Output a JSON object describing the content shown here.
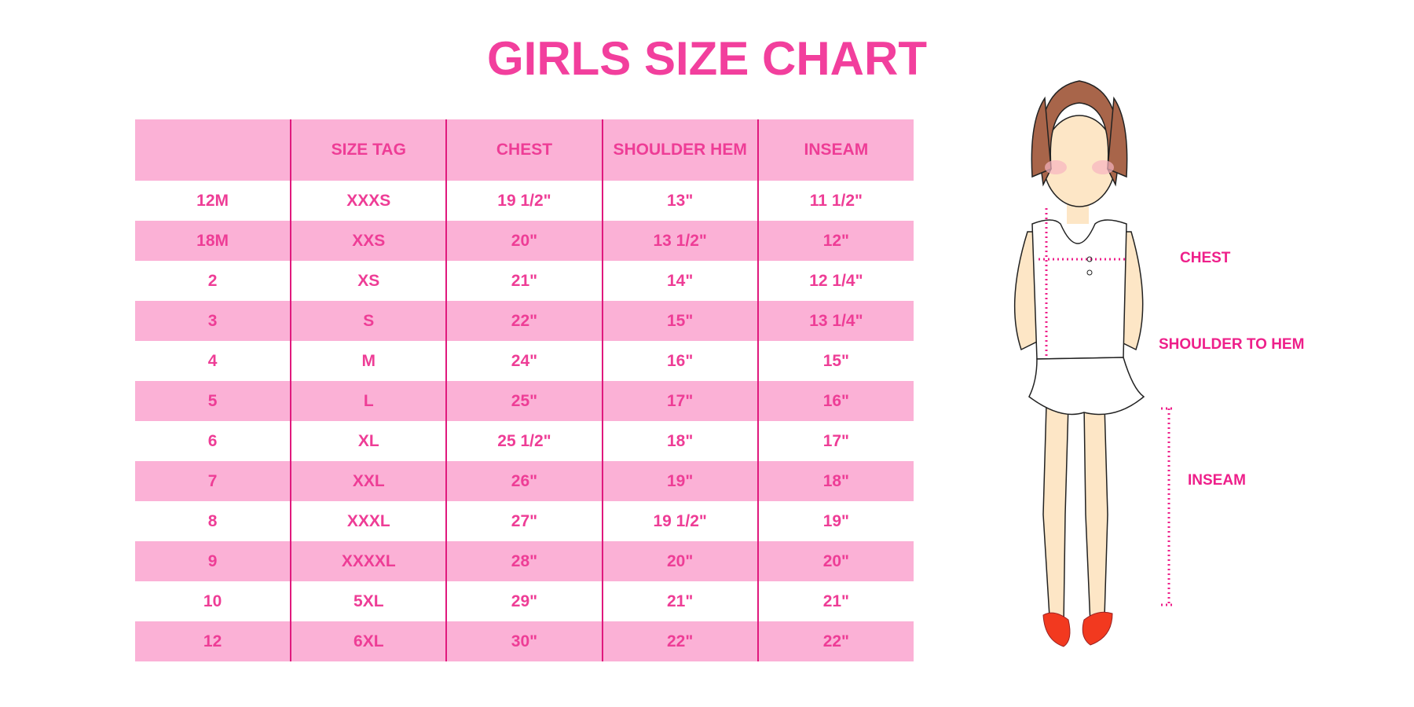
{
  "title": "GIRLS SIZE CHART",
  "table": {
    "headers": [
      "",
      "SIZE TAG",
      "CHEST",
      "SHOULDER HEM",
      "INSEAM"
    ],
    "rows": [
      [
        "12M",
        "XXXS",
        "19 1/2\"",
        "13\"",
        "11 1/2\""
      ],
      [
        "18M",
        "XXS",
        "20\"",
        "13 1/2\"",
        "12\""
      ],
      [
        "2",
        "XS",
        "21\"",
        "14\"",
        "12 1/4\""
      ],
      [
        "3",
        "S",
        "22\"",
        "15\"",
        "13 1/4\""
      ],
      [
        "4",
        "M",
        "24\"",
        "16\"",
        "15\""
      ],
      [
        "5",
        "L",
        "25\"",
        "17\"",
        "16\""
      ],
      [
        "6",
        "XL",
        "25 1/2\"",
        "18\"",
        "17\""
      ],
      [
        "7",
        "XXL",
        "26\"",
        "19\"",
        "18\""
      ],
      [
        "8",
        "XXXL",
        "27\"",
        "19 1/2\"",
        "19\""
      ],
      [
        "9",
        "XXXXL",
        "28\"",
        "20\"",
        "20\""
      ],
      [
        "10",
        "5XL",
        "29\"",
        "21\"",
        "21\""
      ],
      [
        "12",
        "6XL",
        "30\"",
        "22\"",
        "22\""
      ]
    ]
  },
  "figure": {
    "labels": {
      "chest": "CHEST",
      "shoulder": "SHOULDER TO HEM",
      "inseam": "INSEAM"
    }
  },
  "colors": {
    "accent": "#f23f9d",
    "row_pink": "#fbb1d6",
    "divider": "#e0197d"
  }
}
